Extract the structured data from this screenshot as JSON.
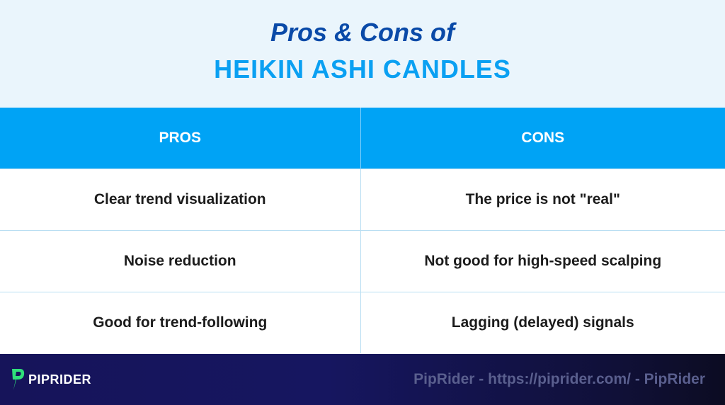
{
  "title": {
    "line1": "Pros & Cons of",
    "line2": "HEIKIN ASHI CANDLES"
  },
  "table": {
    "headers": [
      "PROS",
      "CONS"
    ],
    "rows": [
      [
        "Clear trend visualization",
        "The price is not \"real\""
      ],
      [
        "Noise reduction",
        "Not good for high-speed scalping"
      ],
      [
        "Good for trend-following",
        "Lagging (delayed) signals"
      ]
    ]
  },
  "footer": {
    "logo_text": "PIPRIDER",
    "logo_icon": "piprider-logo-icon",
    "watermark": "PipRider - https://piprider.com/ - PipRider"
  },
  "colors": {
    "title_dark": "#0a4aa8",
    "title_accent": "#0aa0f2",
    "header_bg": "#00a3f5",
    "footer_bg": "#16145a",
    "logo_green": "#2fe07a"
  }
}
